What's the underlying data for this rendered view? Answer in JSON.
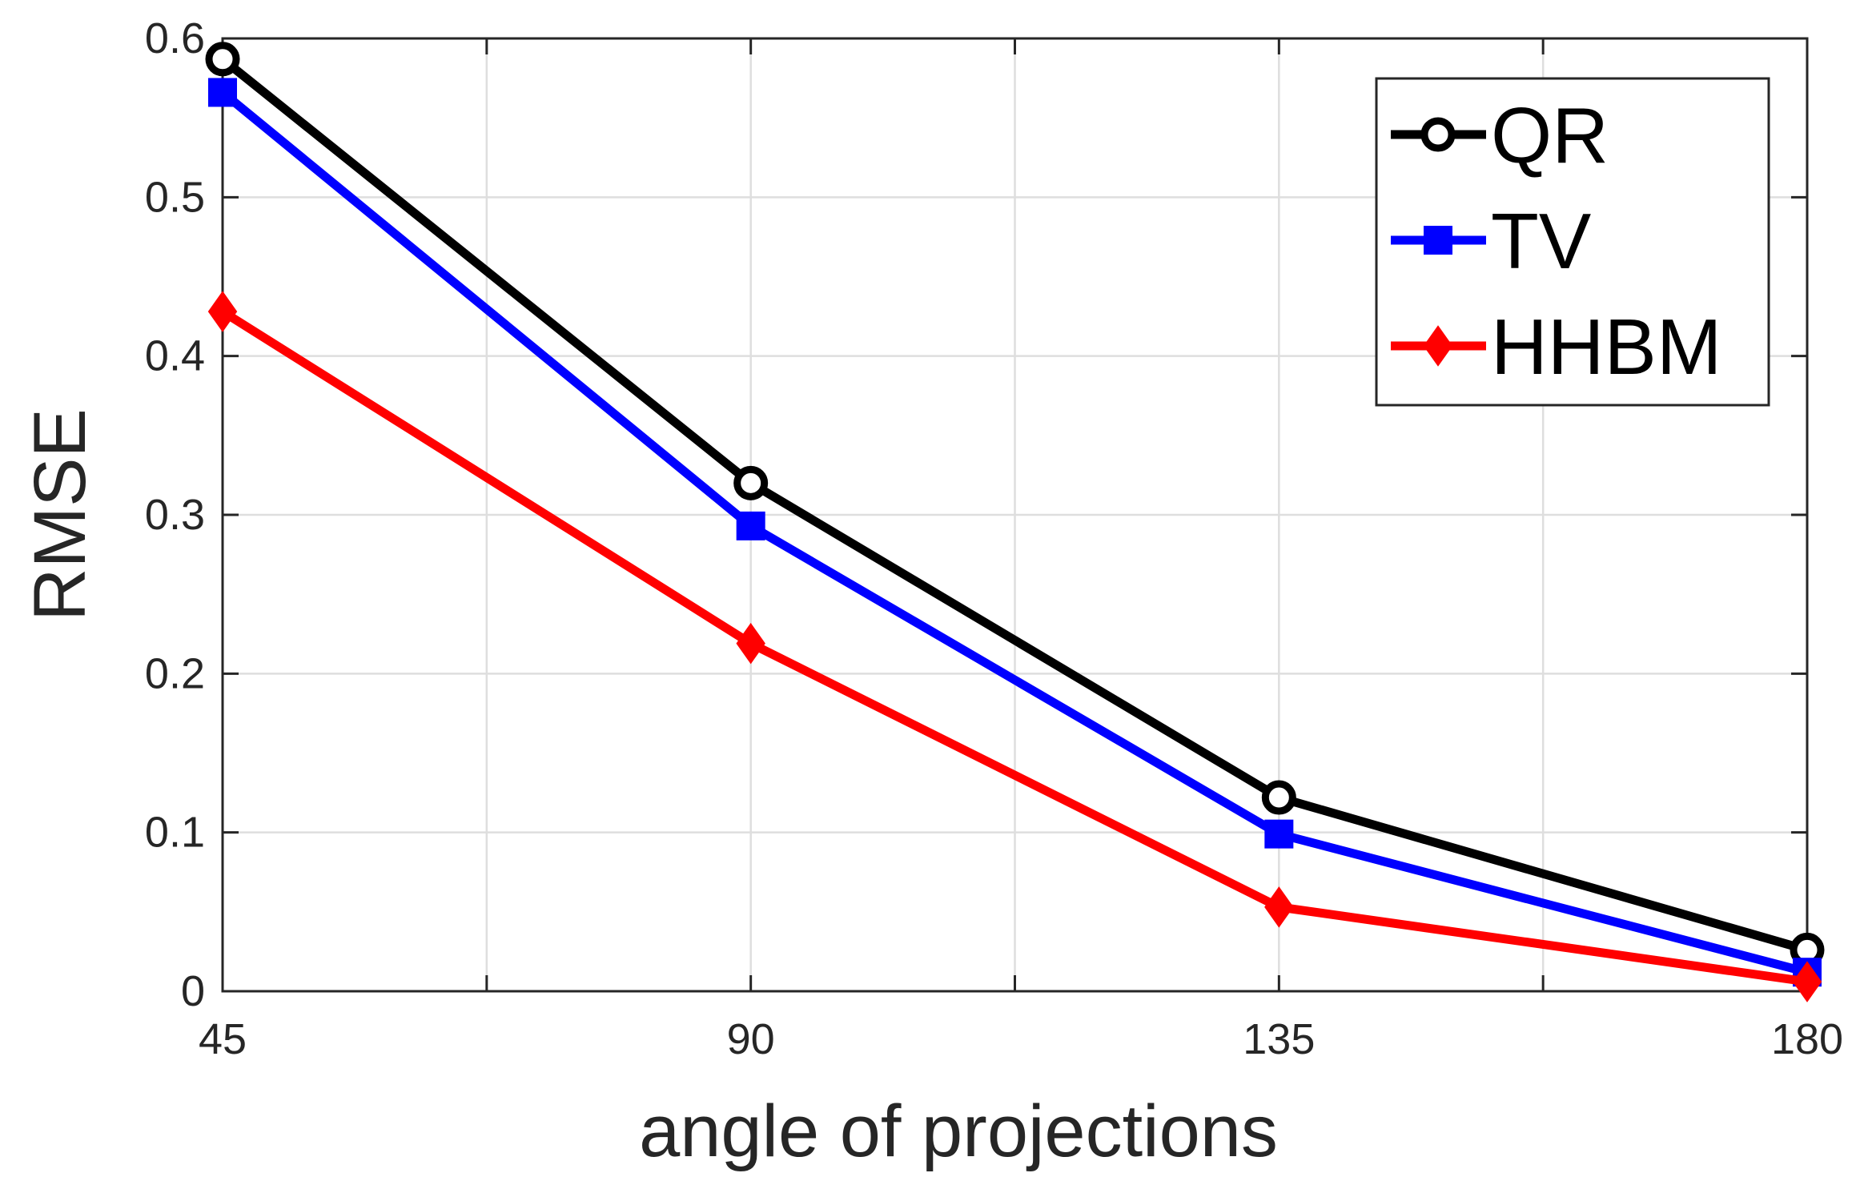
{
  "chart_data": {
    "type": "line",
    "title": "",
    "xlabel": "angle of projections",
    "ylabel": "RMSE",
    "x": [
      45,
      90,
      135,
      180
    ],
    "xlim": [
      45,
      180
    ],
    "ylim": [
      0,
      0.6
    ],
    "xticks": [
      45,
      90,
      135,
      180
    ],
    "xtick_labels": [
      "45",
      "90",
      "135",
      "180"
    ],
    "minor_xticks": [
      67.5,
      112.5,
      157.5
    ],
    "yticks": [
      0,
      0.1,
      0.2,
      0.3,
      0.4,
      0.5,
      0.6
    ],
    "ytick_labels": [
      "0",
      "0.1",
      "0.2",
      "0.3",
      "0.4",
      "0.5",
      "0.6"
    ],
    "grid": true,
    "legend_position": "top-right",
    "series": [
      {
        "name": "QR",
        "color": "#000000",
        "marker": "circle",
        "values": [
          0.587,
          0.32,
          0.122,
          0.026
        ]
      },
      {
        "name": "TV",
        "color": "#0000ff",
        "marker": "square",
        "values": [
          0.566,
          0.293,
          0.099,
          0.012
        ]
      },
      {
        "name": "HHBM",
        "color": "#ff0000",
        "marker": "diamond",
        "values": [
          0.428,
          0.219,
          0.053,
          0.006
        ]
      }
    ]
  }
}
